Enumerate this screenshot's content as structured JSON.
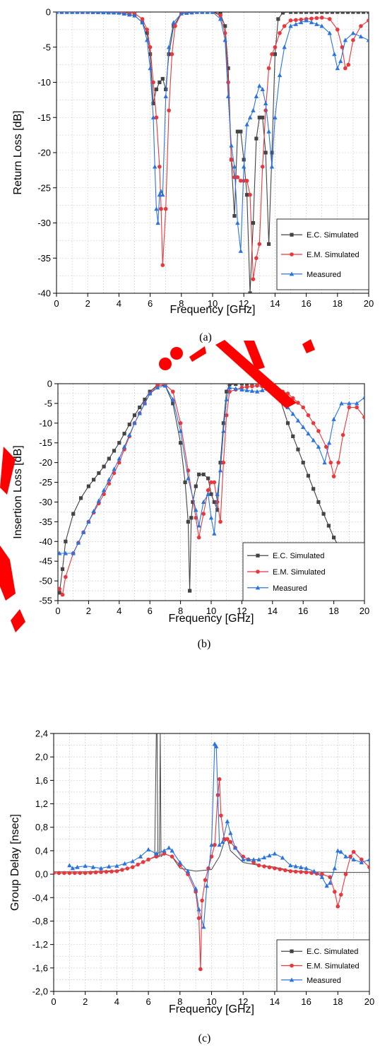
{
  "chart_data": [
    {
      "type": "line",
      "caption": "(a)",
      "xlabel": "Frequency [GHz]",
      "ylabel": "Return Loss [dB]",
      "xlim": [
        0,
        20
      ],
      "ylim": [
        -40,
        0
      ],
      "xticks": [
        0,
        2,
        4,
        6,
        8,
        10,
        12,
        14,
        16,
        18,
        20
      ],
      "yticks": [
        0,
        -5,
        -10,
        -15,
        -20,
        -25,
        -30,
        -35,
        -40
      ],
      "grid": true,
      "legend_position": "bottom-right",
      "series": [
        {
          "name": "E.C. Simulated",
          "color": "#444444",
          "marker": "square",
          "x": [
            0,
            2,
            4,
            5,
            5.5,
            5.8,
            6.0,
            6.2,
            6.4,
            6.6,
            6.8,
            7.0,
            7.2,
            7.5,
            8.0,
            9.0,
            10.0,
            10.5,
            10.8,
            11.0,
            11.2,
            11.4,
            11.6,
            11.8,
            12.0,
            12.2,
            12.4,
            12.6,
            12.8,
            13.0,
            13.2,
            13.4,
            13.6,
            13.8,
            14.0,
            14.2,
            14.5,
            15,
            16,
            18,
            20
          ],
          "y": [
            0,
            0,
            -0.1,
            -0.5,
            -1.5,
            -3,
            -6,
            -13,
            -11,
            -10,
            -9.5,
            -11,
            -6,
            -2,
            -0.2,
            0,
            0,
            -0.3,
            -2,
            -8,
            -21,
            -29,
            -17,
            -17,
            -21,
            -26,
            -40,
            -30,
            -18,
            -15,
            -15,
            -20,
            -33,
            -20,
            -6,
            -1,
            -0.1,
            0,
            0,
            0,
            0
          ]
        },
        {
          "name": "E.M. Simulated",
          "color": "#e8383d",
          "marker": "circle",
          "x": [
            0,
            2,
            4,
            5,
            5.5,
            5.8,
            6.0,
            6.2,
            6.4,
            6.6,
            6.7,
            6.8,
            7.0,
            7.2,
            7.4,
            7.6,
            8.0,
            9.0,
            10.0,
            10.5,
            10.8,
            11.0,
            11.2,
            11.4,
            11.6,
            11.8,
            12.0,
            12.2,
            12.4,
            12.6,
            12.8,
            13.0,
            13.2,
            13.4,
            13.6,
            13.8,
            14.0,
            14.3,
            14.6,
            15,
            16,
            17,
            17.5,
            18,
            18.3,
            18.5,
            18.7,
            19,
            19.5,
            20
          ],
          "y": [
            0,
            0,
            0,
            -0.2,
            -1,
            -2.5,
            -5,
            -10,
            -15,
            -22,
            -28,
            -36,
            -28,
            -14,
            -6,
            -2,
            -0.2,
            0,
            0,
            -0.5,
            -3,
            -10,
            -21,
            -23.5,
            -23.5,
            -24,
            -24,
            -24,
            -26,
            -38,
            -35,
            -33,
            -22,
            -14,
            -8,
            -6,
            -5,
            -3,
            -2,
            -1.2,
            -1,
            -0.8,
            -1,
            -2.5,
            -5,
            -8,
            -7.5,
            -4,
            -2,
            -1.2
          ]
        },
        {
          "name": "Measured",
          "color": "#2b74e0",
          "marker": "triangle",
          "x": [
            0,
            2,
            4,
            5,
            5.5,
            5.8,
            6.0,
            6.2,
            6.3,
            6.4,
            6.5,
            6.6,
            6.7,
            6.8,
            7.0,
            7.2,
            7.5,
            8.0,
            9.0,
            10.0,
            10.5,
            10.8,
            11.0,
            11.2,
            11.4,
            11.6,
            11.8,
            12.0,
            12.2,
            12.4,
            12.6,
            12.8,
            13.0,
            13.2,
            13.4,
            13.6,
            13.8,
            14.0,
            14.3,
            14.6,
            15,
            16,
            17,
            17.5,
            17.8,
            18.0,
            18.2,
            18.5,
            19,
            19.5,
            20
          ],
          "y": [
            0,
            0,
            -0.1,
            -0.5,
            -1.5,
            -4,
            -8,
            -15,
            -22,
            -28,
            -30,
            -26,
            -25.5,
            -26,
            -12,
            -5,
            -1.5,
            -0.2,
            0,
            0,
            -1,
            -4,
            -12,
            -19,
            -22,
            -30,
            -34,
            -22,
            -16,
            -15,
            -14,
            -12,
            -10.5,
            -11,
            -13,
            -17,
            -22,
            -15,
            -9,
            -5,
            -2,
            -1.2,
            -2,
            -3,
            -6,
            -8,
            -7,
            -4,
            -3,
            -3.5,
            -4
          ]
        }
      ]
    },
    {
      "type": "line",
      "caption": "(b)",
      "xlabel": "Frequency [GHz]",
      "ylabel": "Insertion Loss [dB]",
      "xlim": [
        0,
        20
      ],
      "ylim": [
        -55,
        0
      ],
      "xticks": [
        0,
        2,
        4,
        6,
        8,
        10,
        12,
        14,
        16,
        18,
        20
      ],
      "yticks": [
        0,
        -5,
        -10,
        -15,
        -20,
        -25,
        -30,
        -35,
        -40,
        -45,
        -50,
        -55
      ],
      "grid": true,
      "legend_position": "bottom-right",
      "series": [
        {
          "name": "E.C. Simulated",
          "color": "#444444",
          "marker": "square",
          "x": [
            0.1,
            0.3,
            0.5,
            1,
            1.5,
            2,
            3,
            4,
            5,
            6,
            6.5,
            7,
            7.5,
            8,
            8.3,
            8.5,
            8.6,
            8.7,
            8.8,
            9,
            9.2,
            9.5,
            9.8,
            10,
            10.2,
            10.4,
            10.6,
            10.8,
            11,
            11.2,
            12,
            13,
            13.5,
            14,
            14.5,
            15,
            16,
            17,
            18,
            19,
            20
          ],
          "y": [
            -53,
            -47,
            -40,
            -33,
            -29,
            -26,
            -21,
            -15,
            -8,
            -2,
            -0.3,
            -0.5,
            -5,
            -15,
            -25,
            -35,
            -52.5,
            -34,
            -30,
            -26,
            -23,
            -23,
            -24,
            -28,
            -30,
            -32,
            -20,
            -10,
            -2,
            -0.2,
            0,
            0,
            0,
            -0.5,
            -4,
            -10,
            -20,
            -30,
            -39,
            -46,
            -52.5
          ]
        },
        {
          "name": "E.M. Simulated",
          "color": "#e8383d",
          "marker": "circle",
          "x": [
            0.1,
            0.3,
            0.5,
            1,
            2,
            3,
            4,
            5,
            6,
            6.5,
            7,
            7.5,
            8,
            8.5,
            9,
            9.2,
            9.5,
            9.8,
            10,
            10.2,
            10.4,
            10.6,
            10.8,
            11,
            11.2,
            12,
            13,
            14,
            15,
            16,
            17,
            17.5,
            17.8,
            18.0,
            18.3,
            18.6,
            19,
            19.5,
            20
          ],
          "y": [
            -52,
            -53.5,
            -49,
            -43,
            -35,
            -28,
            -20,
            -10,
            -2.5,
            -0.5,
            -0.2,
            -2,
            -10,
            -22,
            -34,
            -39,
            -33,
            -27,
            -25,
            -25,
            -30,
            -35,
            -20,
            -8,
            -2,
            -1,
            -0.5,
            -1,
            -2.5,
            -6,
            -12,
            -16,
            -20,
            -23.5,
            -20,
            -13,
            -6,
            -6,
            -8.5
          ]
        },
        {
          "name": "Measured",
          "color": "#2b74e0",
          "marker": "triangle",
          "x": [
            0.1,
            0.5,
            1,
            2,
            3,
            4,
            5,
            6,
            6.5,
            7,
            7.5,
            8,
            8.5,
            9,
            9.2,
            9.5,
            9.8,
            10,
            10.2,
            10.4,
            10.6,
            10.8,
            11,
            11.2,
            12,
            13,
            14,
            15,
            16,
            17,
            17.4,
            17.7,
            18,
            18.5,
            19,
            19.5,
            20
          ],
          "y": [
            -43,
            -43,
            -43,
            -35,
            -27,
            -19,
            -10,
            -2.5,
            -1,
            -0.5,
            -4,
            -12,
            -24,
            -32,
            -36,
            -30,
            -28,
            -34,
            -38,
            -28,
            -22,
            -12,
            -4,
            -1,
            -1.5,
            -2,
            -1,
            -6,
            -11,
            -16,
            -20,
            -15,
            -9,
            -5,
            -5,
            -5,
            -3.5
          ]
        }
      ]
    },
    {
      "type": "line",
      "caption": "(c)",
      "xlabel": "Frequency [GHz]",
      "ylabel": "Group Delay [nsec]",
      "xlim": [
        0,
        20
      ],
      "ylim": [
        -2.0,
        2.4
      ],
      "xticks": [
        0,
        2,
        4,
        6,
        8,
        10,
        12,
        14,
        16,
        18,
        20
      ],
      "yticks": [
        "-2,0",
        "-1,6",
        "-1,2",
        "-0,8",
        "-0,4",
        "0,0",
        "0,4",
        "0,8",
        "1,2",
        "1,6",
        "2,0",
        "2,4"
      ],
      "ytick_values": [
        -2.0,
        -1.6,
        -1.2,
        -0.8,
        -0.4,
        0.0,
        0.4,
        0.8,
        1.2,
        1.6,
        2.0,
        2.4
      ],
      "grid": true,
      "legend_position": "bottom-right",
      "series": [
        {
          "name": "E.C. Simulated",
          "color": "#444444",
          "marker": "none",
          "x": [
            0,
            2,
            4,
            5,
            6,
            6.4,
            6.5,
            6.55,
            6.6,
            6.7,
            6.75,
            6.8,
            7,
            7.5,
            8,
            9,
            10,
            10.5,
            10.8,
            11,
            11.2,
            12,
            13,
            14,
            15,
            16,
            18,
            20
          ],
          "y": [
            0.04,
            0.04,
            0.06,
            0.12,
            0.25,
            0.3,
            2.4,
            2.4,
            0.3,
            0.3,
            2.4,
            0.3,
            0.35,
            0.3,
            0.1,
            0.05,
            0.08,
            0.3,
            0.55,
            0.6,
            0.4,
            0.2,
            0.15,
            0.12,
            0.06,
            0.04,
            0.03,
            0.03
          ]
        },
        {
          "name": "E.M. Simulated",
          "color": "#e8383d",
          "marker": "circle",
          "x": [
            0,
            2,
            4,
            5,
            6,
            6.5,
            7,
            7.5,
            8,
            8.5,
            9,
            9.2,
            9.3,
            9.4,
            9.6,
            9.8,
            10,
            10.2,
            10.4,
            10.5,
            10.6,
            10.8,
            11,
            11.2,
            11.5,
            12,
            13,
            14,
            15,
            16,
            17,
            17.5,
            17.8,
            18,
            18.2,
            18.5,
            18.8,
            19,
            19.5,
            20
          ],
          "y": [
            0.02,
            0.02,
            0.05,
            0.12,
            0.25,
            0.3,
            0.35,
            0.3,
            0.15,
            0.0,
            -0.3,
            -0.75,
            -1.62,
            -0.45,
            -0.1,
            0.1,
            0.3,
            0.5,
            1.35,
            1.62,
            1.0,
            0.6,
            0.6,
            0.55,
            0.45,
            0.3,
            0.15,
            0.1,
            0.05,
            0.03,
            0.0,
            -0.05,
            -0.3,
            -0.55,
            -0.35,
            0.0,
            0.3,
            0.38,
            0.25,
            0.12
          ]
        },
        {
          "name": "Measured",
          "color": "#2b74e0",
          "marker": "triangle",
          "x": [
            1.0,
            1.2,
            1.5,
            2,
            2.5,
            3,
            3.5,
            4,
            4.5,
            5,
            5.5,
            6,
            6.5,
            7,
            7.3,
            7.5,
            8,
            8.5,
            9,
            9.2,
            9.5,
            9.7,
            10,
            10.2,
            10.3,
            10.5,
            10.7,
            11,
            11.2,
            11.5,
            12,
            13,
            14,
            14.5,
            15,
            16,
            16.5,
            17,
            17.3,
            17.5,
            17.8,
            18,
            18.2,
            18.5,
            19,
            19.5,
            20
          ],
          "y": [
            0.15,
            0.1,
            0.12,
            0.14,
            0.12,
            0.1,
            0.13,
            0.14,
            0.18,
            0.22,
            0.3,
            0.42,
            0.35,
            0.4,
            0.45,
            0.4,
            0.2,
            0.05,
            -0.25,
            -0.6,
            -0.9,
            -0.2,
            0.5,
            2.22,
            2.18,
            0.5,
            0.55,
            0.9,
            0.7,
            0.45,
            0.25,
            0.25,
            0.35,
            0.28,
            0.15,
            0.1,
            0.05,
            -0.05,
            -0.2,
            -0.15,
            0.1,
            0.4,
            0.38,
            0.3,
            0.25,
            0.2,
            0.25
          ]
        }
      ]
    }
  ]
}
